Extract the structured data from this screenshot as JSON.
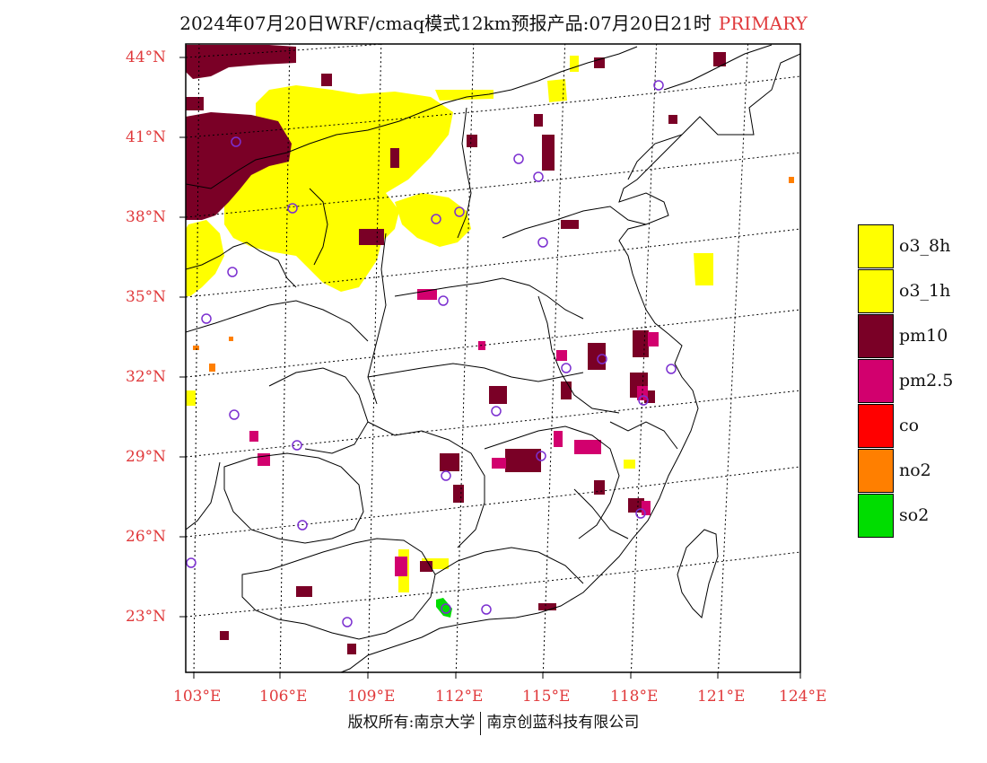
{
  "title": {
    "main": "2024年07月20日WRF/cmaq模式12km预报产品:07月20日21时",
    "tag": "PRIMARY"
  },
  "axes": {
    "lat_labels": [
      "44°N",
      "41°N",
      "38°N",
      "35°N",
      "32°N",
      "29°N",
      "26°N",
      "23°N"
    ],
    "lon_labels": [
      "103°E",
      "106°E",
      "109°E",
      "112°E",
      "115°E",
      "118°E",
      "121°E",
      "124°E"
    ]
  },
  "legend": {
    "items": [
      {
        "label": "o3_8h",
        "color": "#ffff00"
      },
      {
        "label": "o3_1h",
        "color": "#ffff00"
      },
      {
        "label": "pm10",
        "color": "#7a0026"
      },
      {
        "label": "pm2.5",
        "color": "#d2006e"
      },
      {
        "label": "co",
        "color": "#ff0000"
      },
      {
        "label": "no2",
        "color": "#ff7f00"
      },
      {
        "label": "so2",
        "color": "#00dd00"
      }
    ]
  },
  "copyright": {
    "left": "版权所有:南京大学",
    "right": "南京创蓝科技有限公司"
  },
  "colors": {
    "o3": "#ffff00",
    "pm10": "#7a0026",
    "pm25": "#d2006e",
    "no2": "#ff7f00",
    "so2": "#00dd00",
    "station": "#7b2fd0",
    "labels": "#e0393b"
  }
}
